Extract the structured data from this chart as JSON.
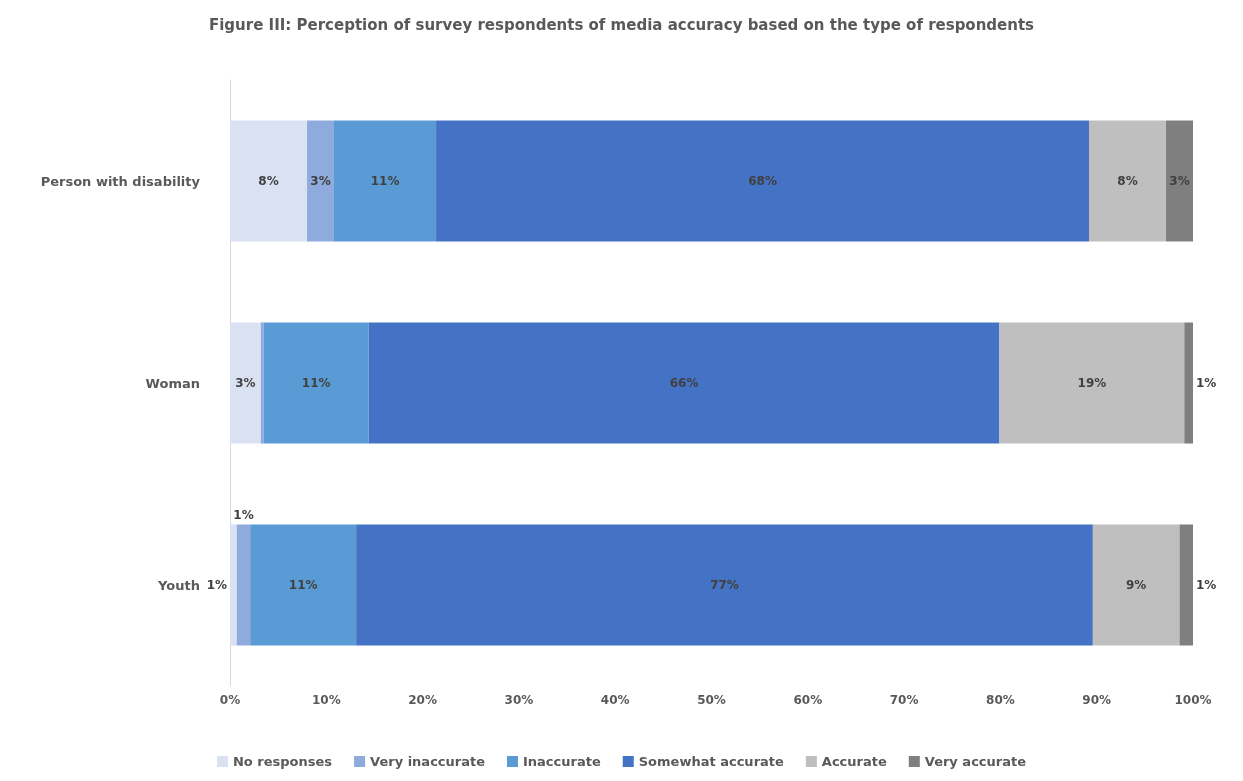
{
  "chart_data": {
    "type": "bar",
    "orientation": "horizontal",
    "stacked": true,
    "title": "Figure III: Perception of survey respondents of media accuracy based on the type of respondents",
    "categories": [
      "Person with disability",
      "Woman",
      "Youth"
    ],
    "series": [
      {
        "name": "No responses",
        "color": "#dae1f3",
        "values": [
          8.0,
          3.2,
          0.7
        ],
        "value_labels": [
          "8%",
          "3%",
          "1%"
        ]
      },
      {
        "name": "Very inaccurate",
        "color": "#8faadc",
        "values": [
          2.8,
          0.3,
          1.4
        ],
        "value_labels": [
          "3%",
          null,
          "1%"
        ]
      },
      {
        "name": "Inaccurate",
        "color": "#5b9bd5",
        "values": [
          10.6,
          10.9,
          11.0
        ],
        "value_labels": [
          "11%",
          "11%",
          "11%"
        ]
      },
      {
        "name": "Somewhat accurate",
        "color": "#4472c4",
        "values": [
          67.8,
          65.5,
          76.5
        ],
        "value_labels": [
          "68%",
          "66%",
          "77%"
        ]
      },
      {
        "name": "Accurate",
        "color": "#bfbfbf",
        "values": [
          8.0,
          19.2,
          9.0
        ],
        "value_labels": [
          "8%",
          "19%",
          "9%"
        ]
      },
      {
        "name": "Very accurate",
        "color": "#7f7f7f",
        "values": [
          2.8,
          0.9,
          1.4
        ],
        "value_labels": [
          "3%",
          "1%",
          "1%"
        ]
      }
    ],
    "xlim": [
      0,
      100
    ],
    "xticks": [
      {
        "value": 0,
        "label": "0%"
      },
      {
        "value": 10,
        "label": "10%"
      },
      {
        "value": 20,
        "label": "20%"
      },
      {
        "value": 30,
        "label": "30%"
      },
      {
        "value": 40,
        "label": "40%"
      },
      {
        "value": 50,
        "label": "50%"
      },
      {
        "value": 60,
        "label": "60%"
      },
      {
        "value": 70,
        "label": "70%"
      },
      {
        "value": 80,
        "label": "80%"
      },
      {
        "value": 90,
        "label": "90%"
      },
      {
        "value": 100,
        "label": "100%"
      }
    ],
    "grid": false,
    "legend": "bottom"
  }
}
